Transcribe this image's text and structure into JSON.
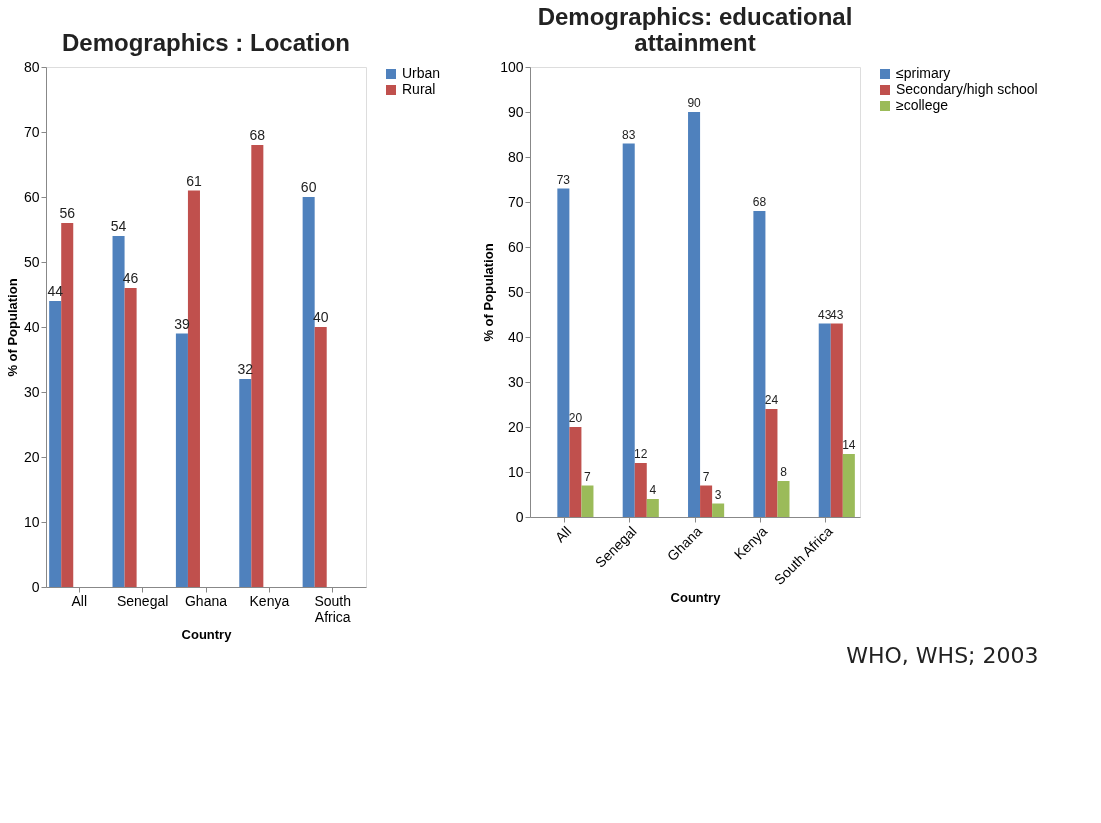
{
  "chart_data": [
    {
      "type": "bar",
      "title": "Demographics : Location",
      "xlabel": "Country",
      "ylabel": "% of Population",
      "categories": [
        "All",
        "Senegal",
        "Ghana",
        "Kenya",
        "South Africa"
      ],
      "series": [
        {
          "name": "Urban",
          "color": "#4f81bd",
          "values": [
            44,
            54,
            39,
            32,
            60
          ]
        },
        {
          "name": "Rural",
          "color": "#c0504d",
          "values": [
            56,
            46,
            61,
            68,
            40
          ]
        }
      ],
      "ylim": [
        0,
        80
      ],
      "yticks": [
        0,
        10,
        20,
        30,
        40,
        50,
        60,
        70,
        80
      ],
      "grid": false,
      "legend": "right",
      "data_labels": true
    },
    {
      "type": "bar",
      "title": "Demographics: educational attainment",
      "xlabel": "Country",
      "ylabel": "% of Population",
      "categories": [
        "All",
        "Senegal",
        "Ghana",
        "Kenya",
        "South Africa"
      ],
      "series": [
        {
          "name": "≤primary",
          "color": "#4f81bd",
          "values": [
            73,
            83,
            90,
            68,
            43
          ]
        },
        {
          "name": "Secondary/high school",
          "color": "#c0504d",
          "values": [
            20,
            12,
            7,
            24,
            43
          ]
        },
        {
          "name": "≥college",
          "color": "#9bbb59",
          "values": [
            7,
            4,
            3,
            8,
            14
          ]
        }
      ],
      "ylim": [
        0,
        100
      ],
      "yticks": [
        0,
        10,
        20,
        30,
        40,
        50,
        60,
        70,
        80,
        90,
        100
      ],
      "grid": false,
      "legend": "right",
      "data_labels": true,
      "annotations": [
        "WHO, WHS; 2003"
      ]
    }
  ]
}
